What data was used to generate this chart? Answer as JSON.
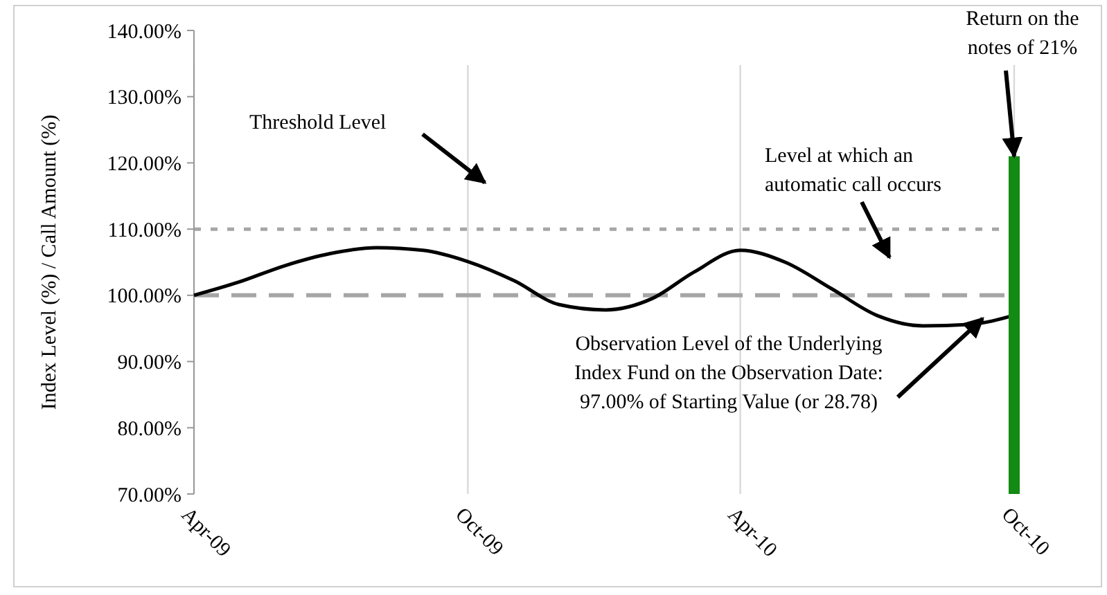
{
  "chart_data": {
    "type": "line",
    "ylabel": "Index Level (%) / Call Amount (%)",
    "ylim": [
      70,
      140
    ],
    "yticks": [
      {
        "value": 70,
        "label": "70.00%"
      },
      {
        "value": 80,
        "label": "80.00%"
      },
      {
        "value": 90,
        "label": "90.00%"
      },
      {
        "value": 100,
        "label": "100.00%"
      },
      {
        "value": 110,
        "label": "110.00%"
      },
      {
        "value": 120,
        "label": "120.00%"
      },
      {
        "value": 130,
        "label": "130.00%"
      },
      {
        "value": 140,
        "label": "140.00%"
      }
    ],
    "xlim": [
      "2009-04",
      "2010-10"
    ],
    "xticks": [
      {
        "value": "2009-04",
        "label": "Apr-09"
      },
      {
        "value": "2009-10",
        "label": "Oct-09"
      },
      {
        "value": "2010-04",
        "label": "Apr-10"
      },
      {
        "value": "2010-10",
        "label": "Oct-10"
      }
    ],
    "grid": "x",
    "marker": "none",
    "line_style": "solid",
    "series": [
      {
        "color": "#000000",
        "x": [
          "2009-04",
          "2009-05",
          "2009-06",
          "2009-07",
          "2009-08",
          "2009-09",
          "2009-10",
          "2009-11",
          "2009-12",
          "2010-01",
          "2010-02",
          "2010-03",
          "2010-04",
          "2010-05",
          "2010-06",
          "2010-07",
          "2010-08",
          "2010-09",
          "2010-10"
        ],
        "values": [
          100,
          102,
          104.5,
          106.3,
          107.2,
          106.8,
          105.1,
          102.2,
          98.6,
          97.8,
          99.5,
          103.5,
          106.8,
          105,
          101,
          97,
          95.4,
          95.6,
          97
        ]
      },
      {
        "type": "bar",
        "color": "#138a13",
        "x": [
          "2010-10"
        ],
        "values": [
          121
        ]
      }
    ],
    "ref_lines": [
      {
        "axis": "y",
        "value": 110,
        "color": "#a6a6a6",
        "line_style": "dotted"
      },
      {
        "axis": "y",
        "value": 100,
        "color": "#a6a6a6",
        "line_style": "dashed"
      }
    ],
    "annotations": [
      "Threshold Level",
      "Level at which an automatic call occurs",
      {
        "text": "Observation Level of the Underlying Index Fund on the Observation Date: 97.00% of Starting Value (or 28.78)",
        "x": "2010-09-10",
        "y": 96.5
      },
      {
        "text": "Return on the notes of 21%",
        "x": "2010-10",
        "y": 121
      }
    ]
  }
}
